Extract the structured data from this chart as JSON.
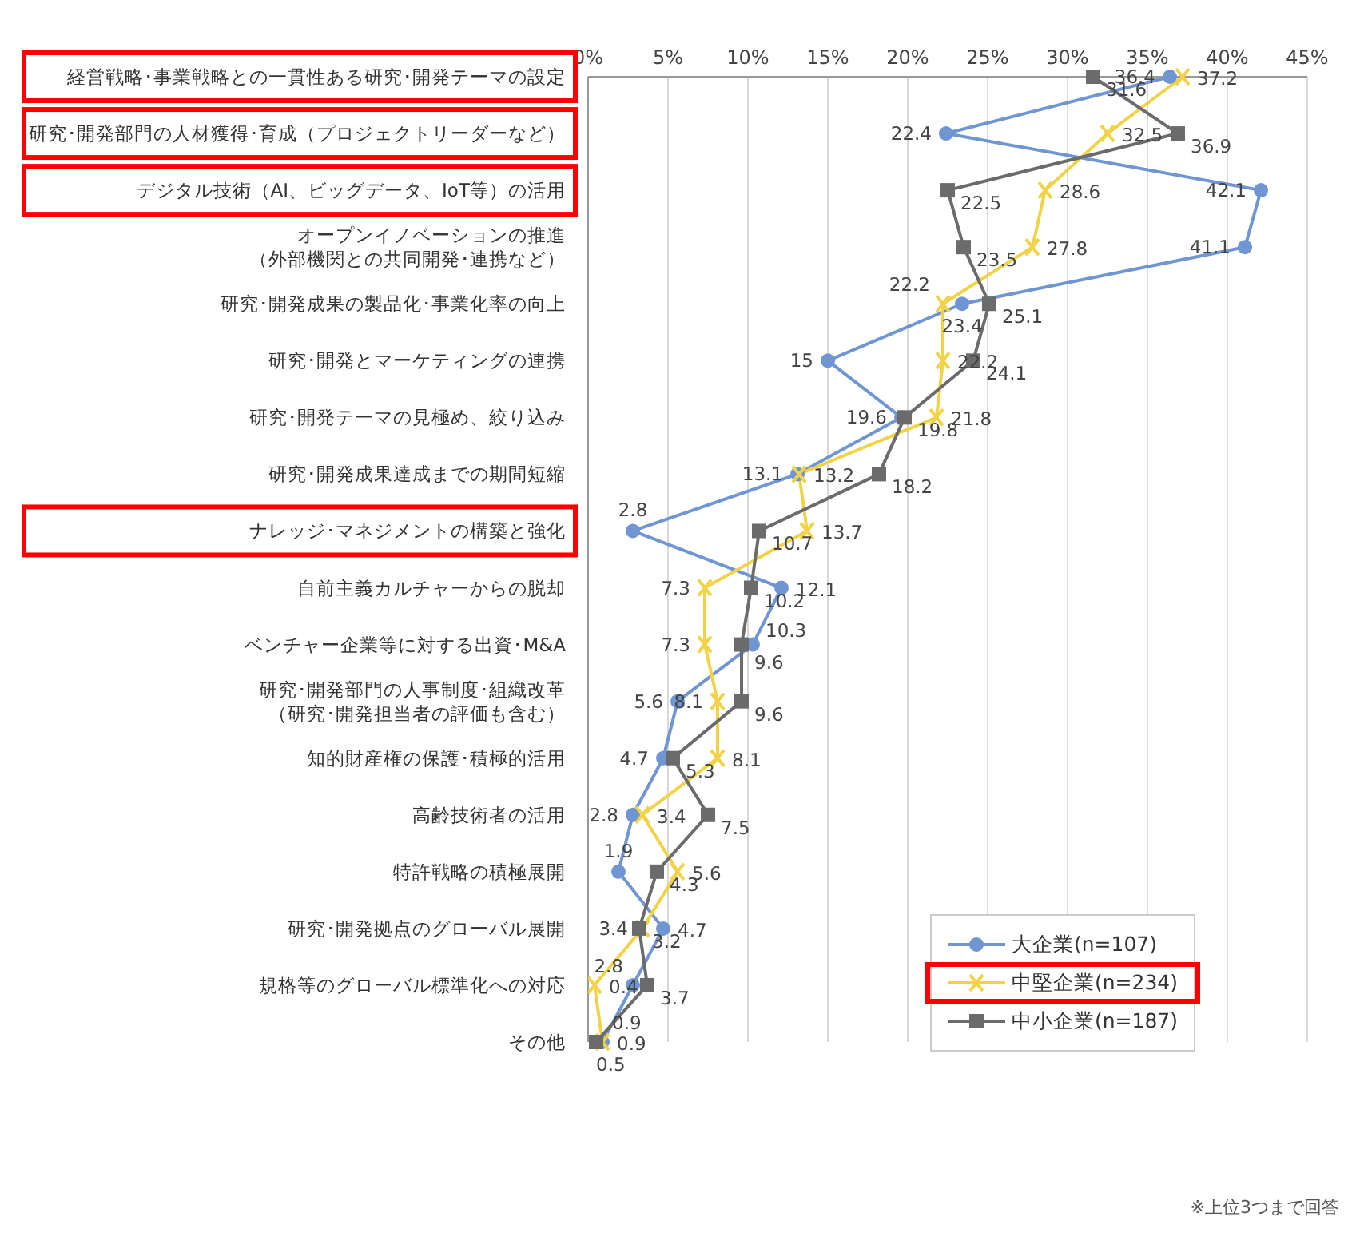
{
  "chart_data": {
    "type": "line",
    "orientation": "horizontal",
    "categories": [
      "経営戦略･事業戦略との一貫性ある研究･開発テーマの設定",
      "研究･開発部門の人材獲得･育成（プロジェクトリーダーなど）",
      "デジタル技術（AI、ビッグデータ、IoT等）の活用",
      "オープンイノベーションの推進（外部機関との共同開発･連携など）",
      "研究･開発成果の製品化･事業化率の向上",
      "研究･開発とマーケティングの連携",
      "研究･開発テーマの見極め、絞り込み",
      "研究･開発成果達成までの期間短縮",
      "ナレッジ･マネジメントの構築と強化",
      "自前主義カルチャーからの脱却",
      "ベンチャー企業等に対する出資･M&A",
      "研究･開発部門の人事制度･組織改革（研究･開発担当者の評価も含む）",
      "知的財産権の保護･積極的活用",
      "高齢技術者の活用",
      "特許戦略の積極展開",
      "研究･開発拠点のグローバル展開",
      "規格等のグローバル標準化への対応",
      "その他"
    ],
    "series": [
      {
        "name": "大企業(n=107)",
        "color": "#6f95d3",
        "marker": "circle",
        "values": [
          36.4,
          22.4,
          42.1,
          41.1,
          23.4,
          15.0,
          19.6,
          13.1,
          2.8,
          12.1,
          10.3,
          5.6,
          4.7,
          2.8,
          1.9,
          4.7,
          2.8,
          0.9
        ]
      },
      {
        "name": "中堅企業(n=234)",
        "color": "#f2d347",
        "marker": "cross",
        "values": [
          37.2,
          32.5,
          28.6,
          27.8,
          22.2,
          22.2,
          21.8,
          13.2,
          13.7,
          7.3,
          7.3,
          8.1,
          8.1,
          3.4,
          5.6,
          3.4,
          0.4,
          0.9
        ]
      },
      {
        "name": "中小企業(n=187)",
        "color": "#6b6b6b",
        "marker": "square",
        "values": [
          31.6,
          36.9,
          22.5,
          23.5,
          25.1,
          24.1,
          19.8,
          18.2,
          10.7,
          10.2,
          9.6,
          9.6,
          5.3,
          7.5,
          4.3,
          3.2,
          3.7,
          0.5
        ]
      }
    ],
    "xlim": [
      0,
      45
    ],
    "xticks": [
      {
        "value": 0,
        "label": "0%"
      },
      {
        "value": 5,
        "label": "5%"
      },
      {
        "value": 10,
        "label": "10%"
      },
      {
        "value": 15,
        "label": "15%"
      },
      {
        "value": 20,
        "label": "20%"
      },
      {
        "value": 25,
        "label": "25%"
      },
      {
        "value": 30,
        "label": "30%"
      },
      {
        "value": 35,
        "label": "35%"
      },
      {
        "value": 40,
        "label": "40%"
      },
      {
        "value": 45,
        "label": "45%"
      }
    ],
    "grid": "x",
    "legend": "bottom right",
    "data_labels": true,
    "line_style": "solid",
    "annotations": [
      "※上位3つまで回答"
    ]
  }
}
